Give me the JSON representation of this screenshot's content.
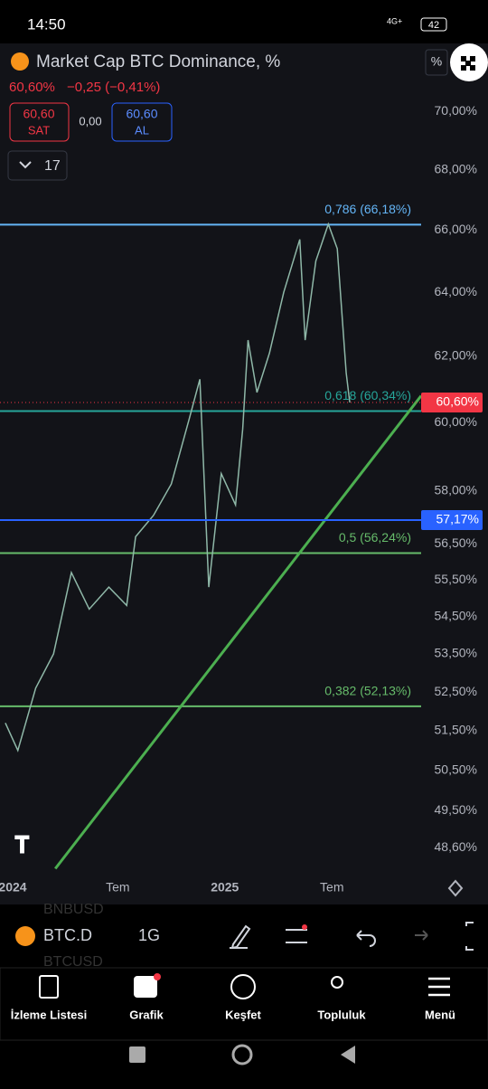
{
  "status_bar": {
    "time": "14:50",
    "network": "4G+",
    "battery": "42"
  },
  "header": {
    "title": "Market Cap BTC Dominance, %",
    "price": "60,60%",
    "change": "−0,25 (−0,41%)",
    "sell_price": "60,60",
    "sell_label": "SAT",
    "spread": "0,00",
    "buy_price": "60,60",
    "buy_label": "AL",
    "interval_count": "17",
    "scale_button": "%"
  },
  "chart_data": {
    "type": "line",
    "color": "#8fb8a8",
    "x": [
      -0.3,
      0.4,
      1.4,
      2.4,
      3.4,
      4.4,
      5.5,
      6.5,
      7,
      8,
      9,
      10,
      10.6,
      11.1,
      11.8,
      12.6,
      13,
      13.3,
      13.8,
      14.5,
      15.3,
      16.2,
      16.5,
      17.1,
      17.8,
      18.3,
      18.8,
      19
    ],
    "values": [
      51.7,
      51,
      52.6,
      53.5,
      55.7,
      54.7,
      55.3,
      54.8,
      56.7,
      57.3,
      58.2,
      60.1,
      61.3,
      55.3,
      58.5,
      57.6,
      59.8,
      62.5,
      60.9,
      62.1,
      64,
      65.7,
      62.5,
      65,
      66.2,
      65.4,
      61.5,
      60.6
    ],
    "xlim": [
      -0.6,
      23
    ],
    "xticks": [
      {
        "value": 0,
        "label": "2024"
      },
      {
        "value": 6,
        "label": "Tem"
      },
      {
        "value": 12,
        "label": "2025"
      },
      {
        "value": 18,
        "label": "Tem"
      }
    ],
    "ylim": [
      48,
      72.4
    ],
    "log_scale": true,
    "yticks": [
      {
        "value": 70,
        "label": "70,00%"
      },
      {
        "value": 68,
        "label": "68,00%"
      },
      {
        "value": 66,
        "label": "66,00%"
      },
      {
        "value": 64,
        "label": "64,00%"
      },
      {
        "value": 62,
        "label": "62,00%"
      },
      {
        "value": 60,
        "label": "60,00%"
      },
      {
        "value": 58,
        "label": "58,00%"
      },
      {
        "value": 56.5,
        "label": "56,50%"
      },
      {
        "value": 55.5,
        "label": "55,50%"
      },
      {
        "value": 54.5,
        "label": "54,50%"
      },
      {
        "value": 53.5,
        "label": "53,50%"
      },
      {
        "value": 52.5,
        "label": "52,50%"
      },
      {
        "value": 51.5,
        "label": "51,50%"
      },
      {
        "value": 50.5,
        "label": "50,50%"
      },
      {
        "value": 49.5,
        "label": "49,50%"
      },
      {
        "value": 48.6,
        "label": "48,60%"
      }
    ],
    "levels": [
      {
        "label": "0,786 (66,18%)",
        "value": 66.18,
        "color": "#64b5f6"
      },
      {
        "label": "0,618 (60,34%)",
        "value": 60.34,
        "color": "#26a69a"
      },
      {
        "label": "0,5 (56,24%)",
        "value": 56.24,
        "color": "#66bb6a"
      },
      {
        "label": "0,382 (52,13%)",
        "value": 52.13,
        "color": "#66bb6a"
      }
    ],
    "price_lines": [
      {
        "label": "60,60%",
        "value": 60.6,
        "color": "#f23645",
        "line_style": "dotted"
      },
      {
        "label": "57,17%",
        "value": 57.17,
        "color": "#2962ff",
        "line_style": "solid"
      }
    ],
    "trendline": {
      "x": [
        2.5,
        23
      ],
      "values": [
        48.1,
        60.8
      ],
      "color": "#4caf50"
    }
  },
  "toolbar": {
    "symbol": "BTC.D",
    "interval": "1G",
    "watch_above": "BNBUSD",
    "watch_below": "BTCUSD"
  },
  "nav": [
    "İzleme Listesi",
    "Grafik",
    "Keşfet",
    "Topluluk",
    "Menü"
  ]
}
